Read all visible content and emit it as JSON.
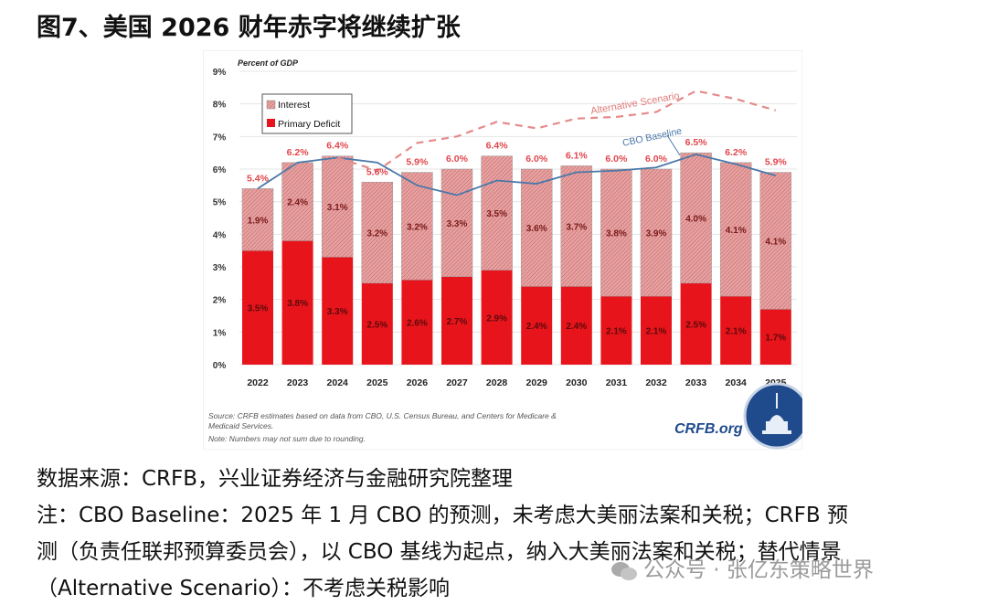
{
  "title": "图7、美国 2026 财年赤字将继续扩张",
  "chart_data": {
    "type": "bar",
    "stacked": true,
    "ylabel": "Percent of GDP",
    "ylim": [
      0,
      9
    ],
    "yticks": [
      "0%",
      "1%",
      "2%",
      "3%",
      "4%",
      "5%",
      "6%",
      "7%",
      "8%",
      "9%"
    ],
    "grid": true,
    "legend_placement": "top-left",
    "categories": [
      "2022",
      "2023",
      "2024",
      "2025",
      "2026",
      "2027",
      "2028",
      "2029",
      "2030",
      "2031",
      "2032",
      "2033",
      "2034",
      "2035"
    ],
    "series": [
      {
        "name": "Primary Deficit",
        "color": "#e8141c",
        "values": [
          3.5,
          3.8,
          3.3,
          2.5,
          2.6,
          2.7,
          2.9,
          2.4,
          2.4,
          2.1,
          2.1,
          2.5,
          2.1,
          1.7
        ],
        "labels": [
          "3.5%",
          "3.8%",
          "3.3%",
          "2.5%",
          "2.6%",
          "2.7%",
          "2.9%",
          "2.4%",
          "2.4%",
          "2.1%",
          "2.1%",
          "2.5%",
          "2.1%",
          "1.7%"
        ]
      },
      {
        "name": "Interest",
        "color": "#d98585",
        "values": [
          1.9,
          2.4,
          3.1,
          3.2,
          3.2,
          3.3,
          3.5,
          3.6,
          3.7,
          3.8,
          3.9,
          4.0,
          4.1,
          4.1
        ],
        "labels": [
          "1.9%",
          "2.4%",
          "3.1%",
          "3.2%",
          "3.2%",
          "3.3%",
          "3.5%",
          "3.6%",
          "3.7%",
          "3.8%",
          "3.9%",
          "4.0%",
          "4.1%",
          "4.1%"
        ]
      }
    ],
    "totals": [
      5.4,
      6.2,
      6.4,
      5.6,
      5.9,
      6.0,
      6.4,
      6.0,
      6.1,
      6.0,
      6.0,
      6.5,
      6.2,
      5.9
    ],
    "total_labels": [
      "5.4%",
      "6.2%",
      "6.4%",
      "5.6%",
      "5.9%",
      "6.0%",
      "6.4%",
      "6.0%",
      "6.1%",
      "6.0%",
      "6.0%",
      "6.5%",
      "6.2%",
      "5.9%"
    ],
    "lines": [
      {
        "name": "CBO Baseline",
        "color": "#4a78a8",
        "style": "solid",
        "values": [
          5.4,
          6.2,
          6.35,
          6.2,
          5.5,
          5.2,
          5.65,
          5.55,
          5.9,
          5.95,
          6.05,
          6.45,
          6.15,
          5.8
        ]
      },
      {
        "name": "Alternative Scenario",
        "color": "#e58a8a",
        "style": "dashed",
        "values": [
          null,
          null,
          6.35,
          5.95,
          6.8,
          7.0,
          7.45,
          7.25,
          7.55,
          7.6,
          7.75,
          8.4,
          8.15,
          7.8
        ]
      }
    ],
    "source": "Source: CRFB estimates based on data from CBO, U.S. Census Bureau, and Centers for Medicare &",
    "source2": "Medicaid Services.",
    "note": "Note: Numbers may not sum due to rounding.",
    "logo_text": "CRFB.org"
  },
  "footer": {
    "line1": "数据来源：CRFB，兴业证券经济与金融研究院整理",
    "line2": "注：CBO Baseline：2025 年 1 月 CBO 的预测，未考虑大美丽法案和关税；CRFB 预",
    "line3": "测（负责任联邦预算委员会），以 CBO 基线为起点，纳入大美丽法案和关税；替代情景",
    "line4": "（Alternative Scenario）：不考虑关税影响"
  },
  "watermark": "公众号 · 张亿东策略世界"
}
